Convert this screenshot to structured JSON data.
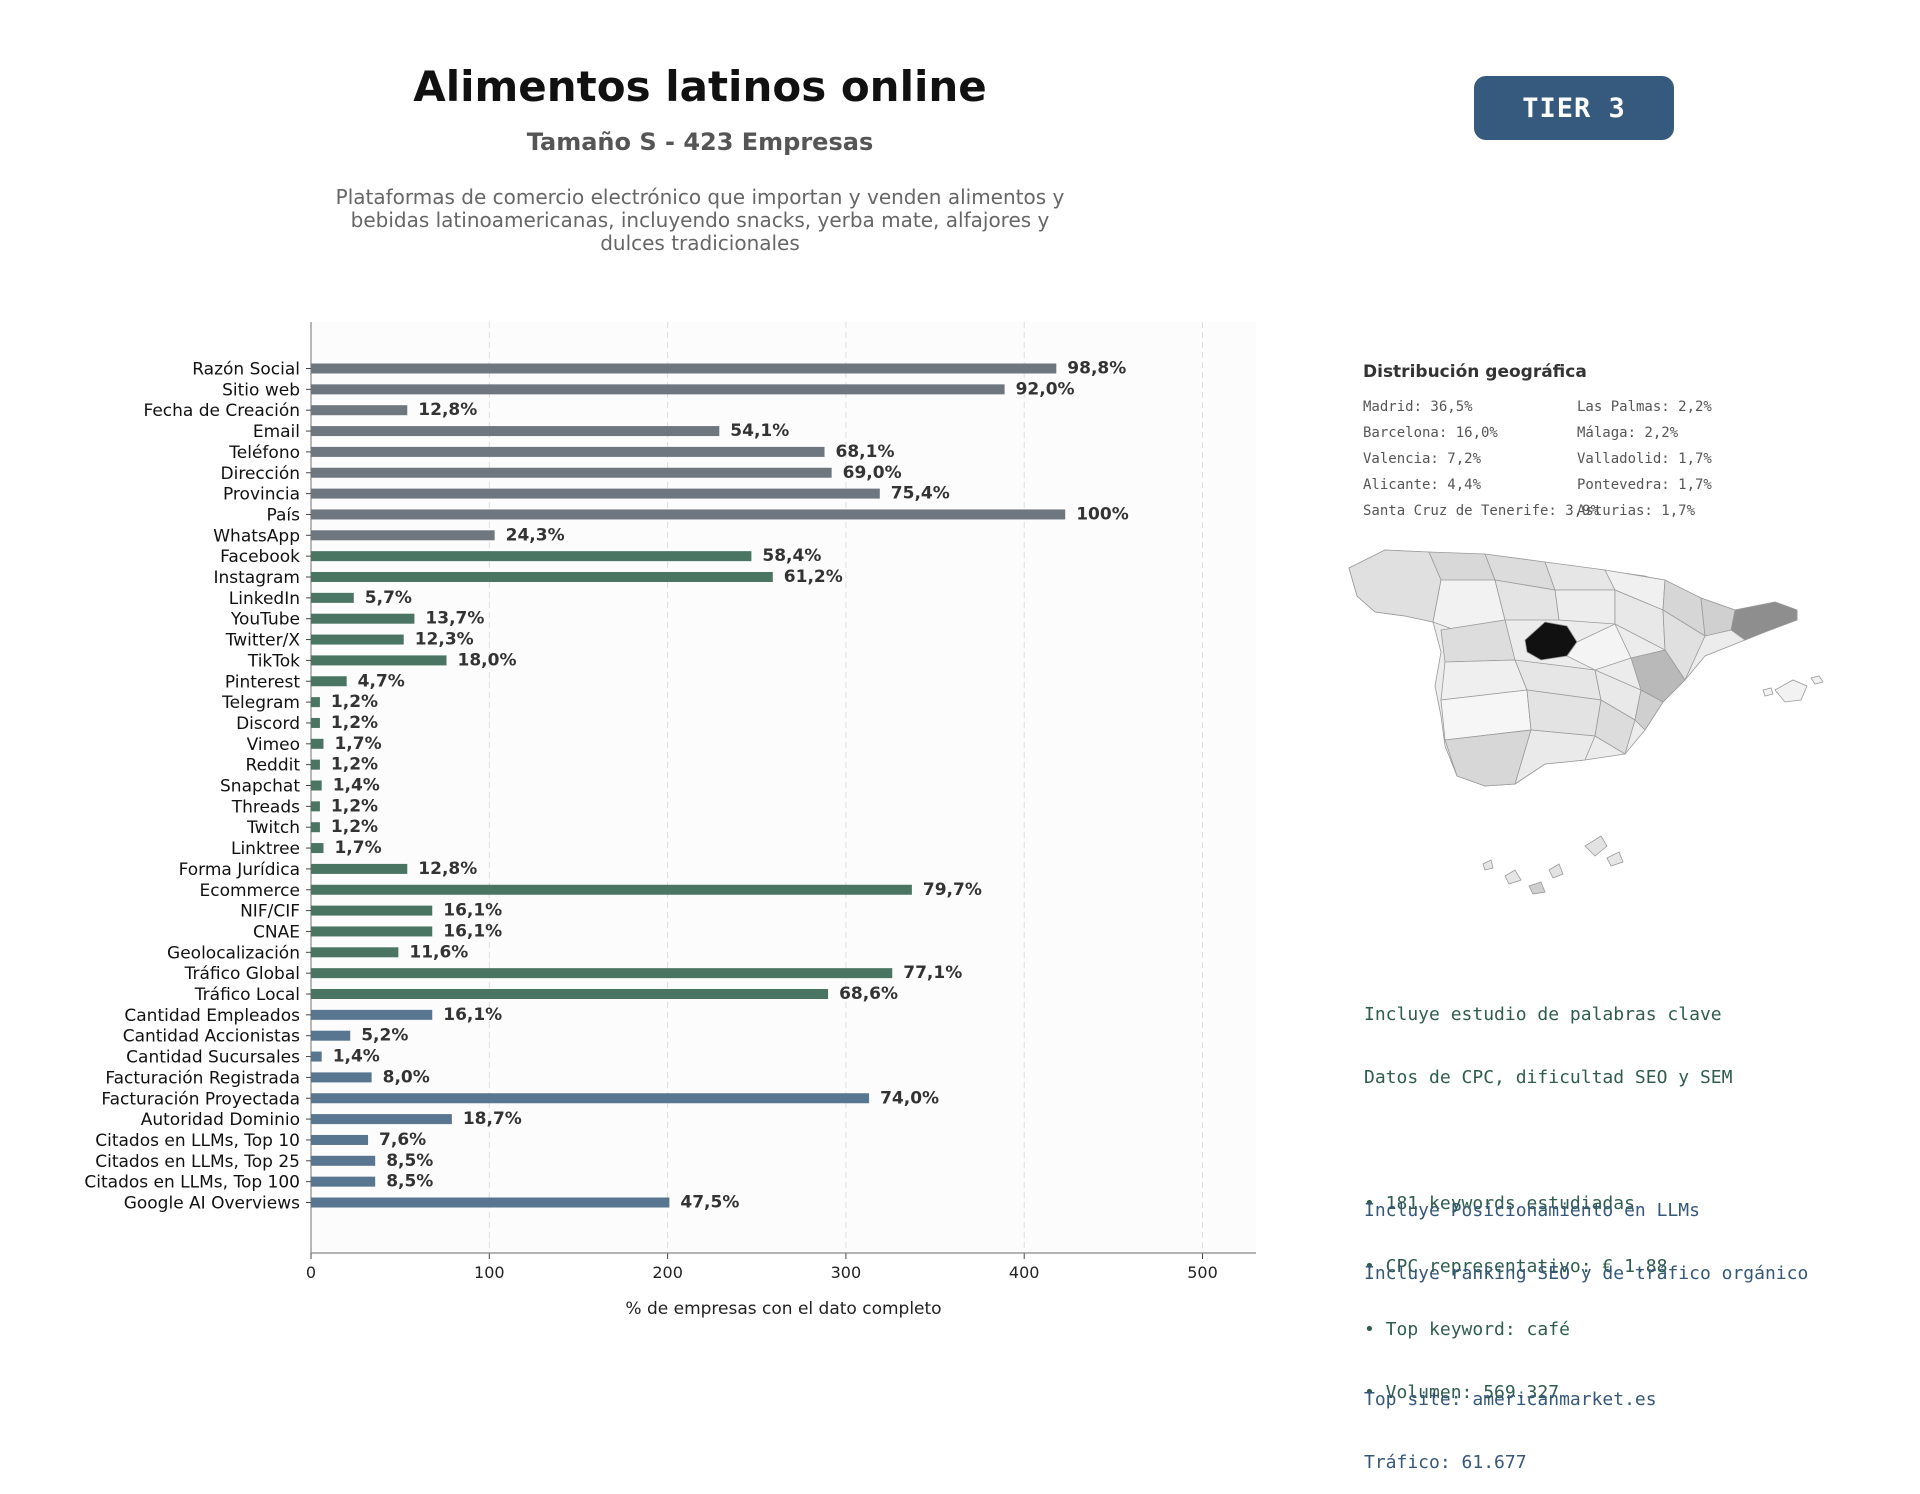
{
  "header": {
    "title": "Alimentos latinos online",
    "subtitle": "Tamaño S - 423 Empresas",
    "description_lines": [
      "Plataformas de comercio electrónico que importan y venden alimentos y",
      "bebidas latinoamericanas, incluyendo snacks, yerba mate, alfajores y",
      "dulces tradicionales"
    ],
    "tier_label": "TIER 3"
  },
  "chart_data": {
    "type": "bar",
    "orientation": "horizontal",
    "xlabel": "% de empresas con el dato completo",
    "xlim": [
      0,
      530
    ],
    "xticks": [
      0,
      100,
      200,
      300,
      400,
      500
    ],
    "grid": "vertical dashed",
    "colors": {
      "grey": "#6e7780",
      "green": "#4a7563",
      "blue": "#587690"
    },
    "categories": [
      "Razón Social",
      "Sitio web",
      "Fecha de Creación",
      "Email",
      "Teléfono",
      "Dirección",
      "Provincia",
      "País",
      "WhatsApp",
      "Facebook",
      "Instagram",
      "LinkedIn",
      "YouTube",
      "Twitter/X",
      "TikTok",
      "Pinterest",
      "Telegram",
      "Discord",
      "Vimeo",
      "Reddit",
      "Snapchat",
      "Threads",
      "Twitch",
      "Linktree",
      "Forma Jurídica",
      "Ecommerce",
      "NIF/CIF",
      "CNAE",
      "Geolocalización",
      "Tráfico Global",
      "Tráfico Local",
      "Cantidad Empleados",
      "Cantidad Accionistas",
      "Cantidad Sucursales",
      "Facturación Registrada",
      "Facturación Proyectada",
      "Autoridad Dominio",
      "Citados en LLMs, Top 10",
      "Citados en LLMs, Top 25",
      "Citados en LLMs, Top 100",
      "Google AI Overviews"
    ],
    "values": [
      418,
      389,
      54,
      229,
      288,
      292,
      319,
      423,
      103,
      247,
      259,
      24,
      58,
      52,
      76,
      20,
      5,
      5,
      7,
      5,
      6,
      5,
      5,
      7,
      54,
      337,
      68,
      68,
      49,
      326,
      290,
      68,
      22,
      6,
      34,
      313,
      79,
      32,
      36,
      36,
      201
    ],
    "labels": [
      "98,8%",
      "92,0%",
      "12,8%",
      "54,1%",
      "68,1%",
      "69,0%",
      "75,4%",
      "100%",
      "24,3%",
      "58,4%",
      "61,2%",
      "5,7%",
      "13,7%",
      "12,3%",
      "18,0%",
      "4,7%",
      "1,2%",
      "1,2%",
      "1,7%",
      "1,2%",
      "1,4%",
      "1,2%",
      "1,2%",
      "1,7%",
      "12,8%",
      "79,7%",
      "16,1%",
      "16,1%",
      "11,6%",
      "77,1%",
      "68,6%",
      "16,1%",
      "5,2%",
      "1,4%",
      "8,0%",
      "74,0%",
      "18,7%",
      "7,6%",
      "8,5%",
      "8,5%",
      "47,5%"
    ],
    "groups": [
      "grey",
      "grey",
      "grey",
      "grey",
      "grey",
      "grey",
      "grey",
      "grey",
      "grey",
      "green",
      "green",
      "green",
      "green",
      "green",
      "green",
      "green",
      "green",
      "green",
      "green",
      "green",
      "green",
      "green",
      "green",
      "green",
      "green",
      "green",
      "green",
      "green",
      "green",
      "green",
      "green",
      "blue",
      "blue",
      "blue",
      "blue",
      "blue",
      "blue",
      "blue",
      "blue",
      "blue",
      "blue"
    ]
  },
  "geo": {
    "title": "Distribución geográfica",
    "items": [
      "Madrid: 36,5%",
      "Las Palmas: 2,2%",
      "Barcelona: 16,0%",
      "Málaga: 2,2%",
      "Valencia: 7,2%",
      "Valladolid: 1,7%",
      "Alicante: 4,4%",
      "Pontevedra: 1,7%",
      "Santa Cruz de Tenerife: 3,9%",
      "Asturias: 1,7%"
    ]
  },
  "keywords": {
    "line1": "Incluye estudio de palabras clave",
    "line2": "Datos de CPC, dificultad SEO y SEM",
    "bullets": [
      "• 181 keywords estudiadas",
      "• CPC representativo: € 1.88",
      "• Top keyword: café",
      "• Volumen: 569.327"
    ]
  },
  "llm": {
    "line1": "Incluye Posicionamiento en LLMs",
    "line2": "Incluye ranking SEO y de tráfico orgánico",
    "top_site": "Top site: americanmarket.es",
    "traffic": "Tráfico: 61.677"
  }
}
